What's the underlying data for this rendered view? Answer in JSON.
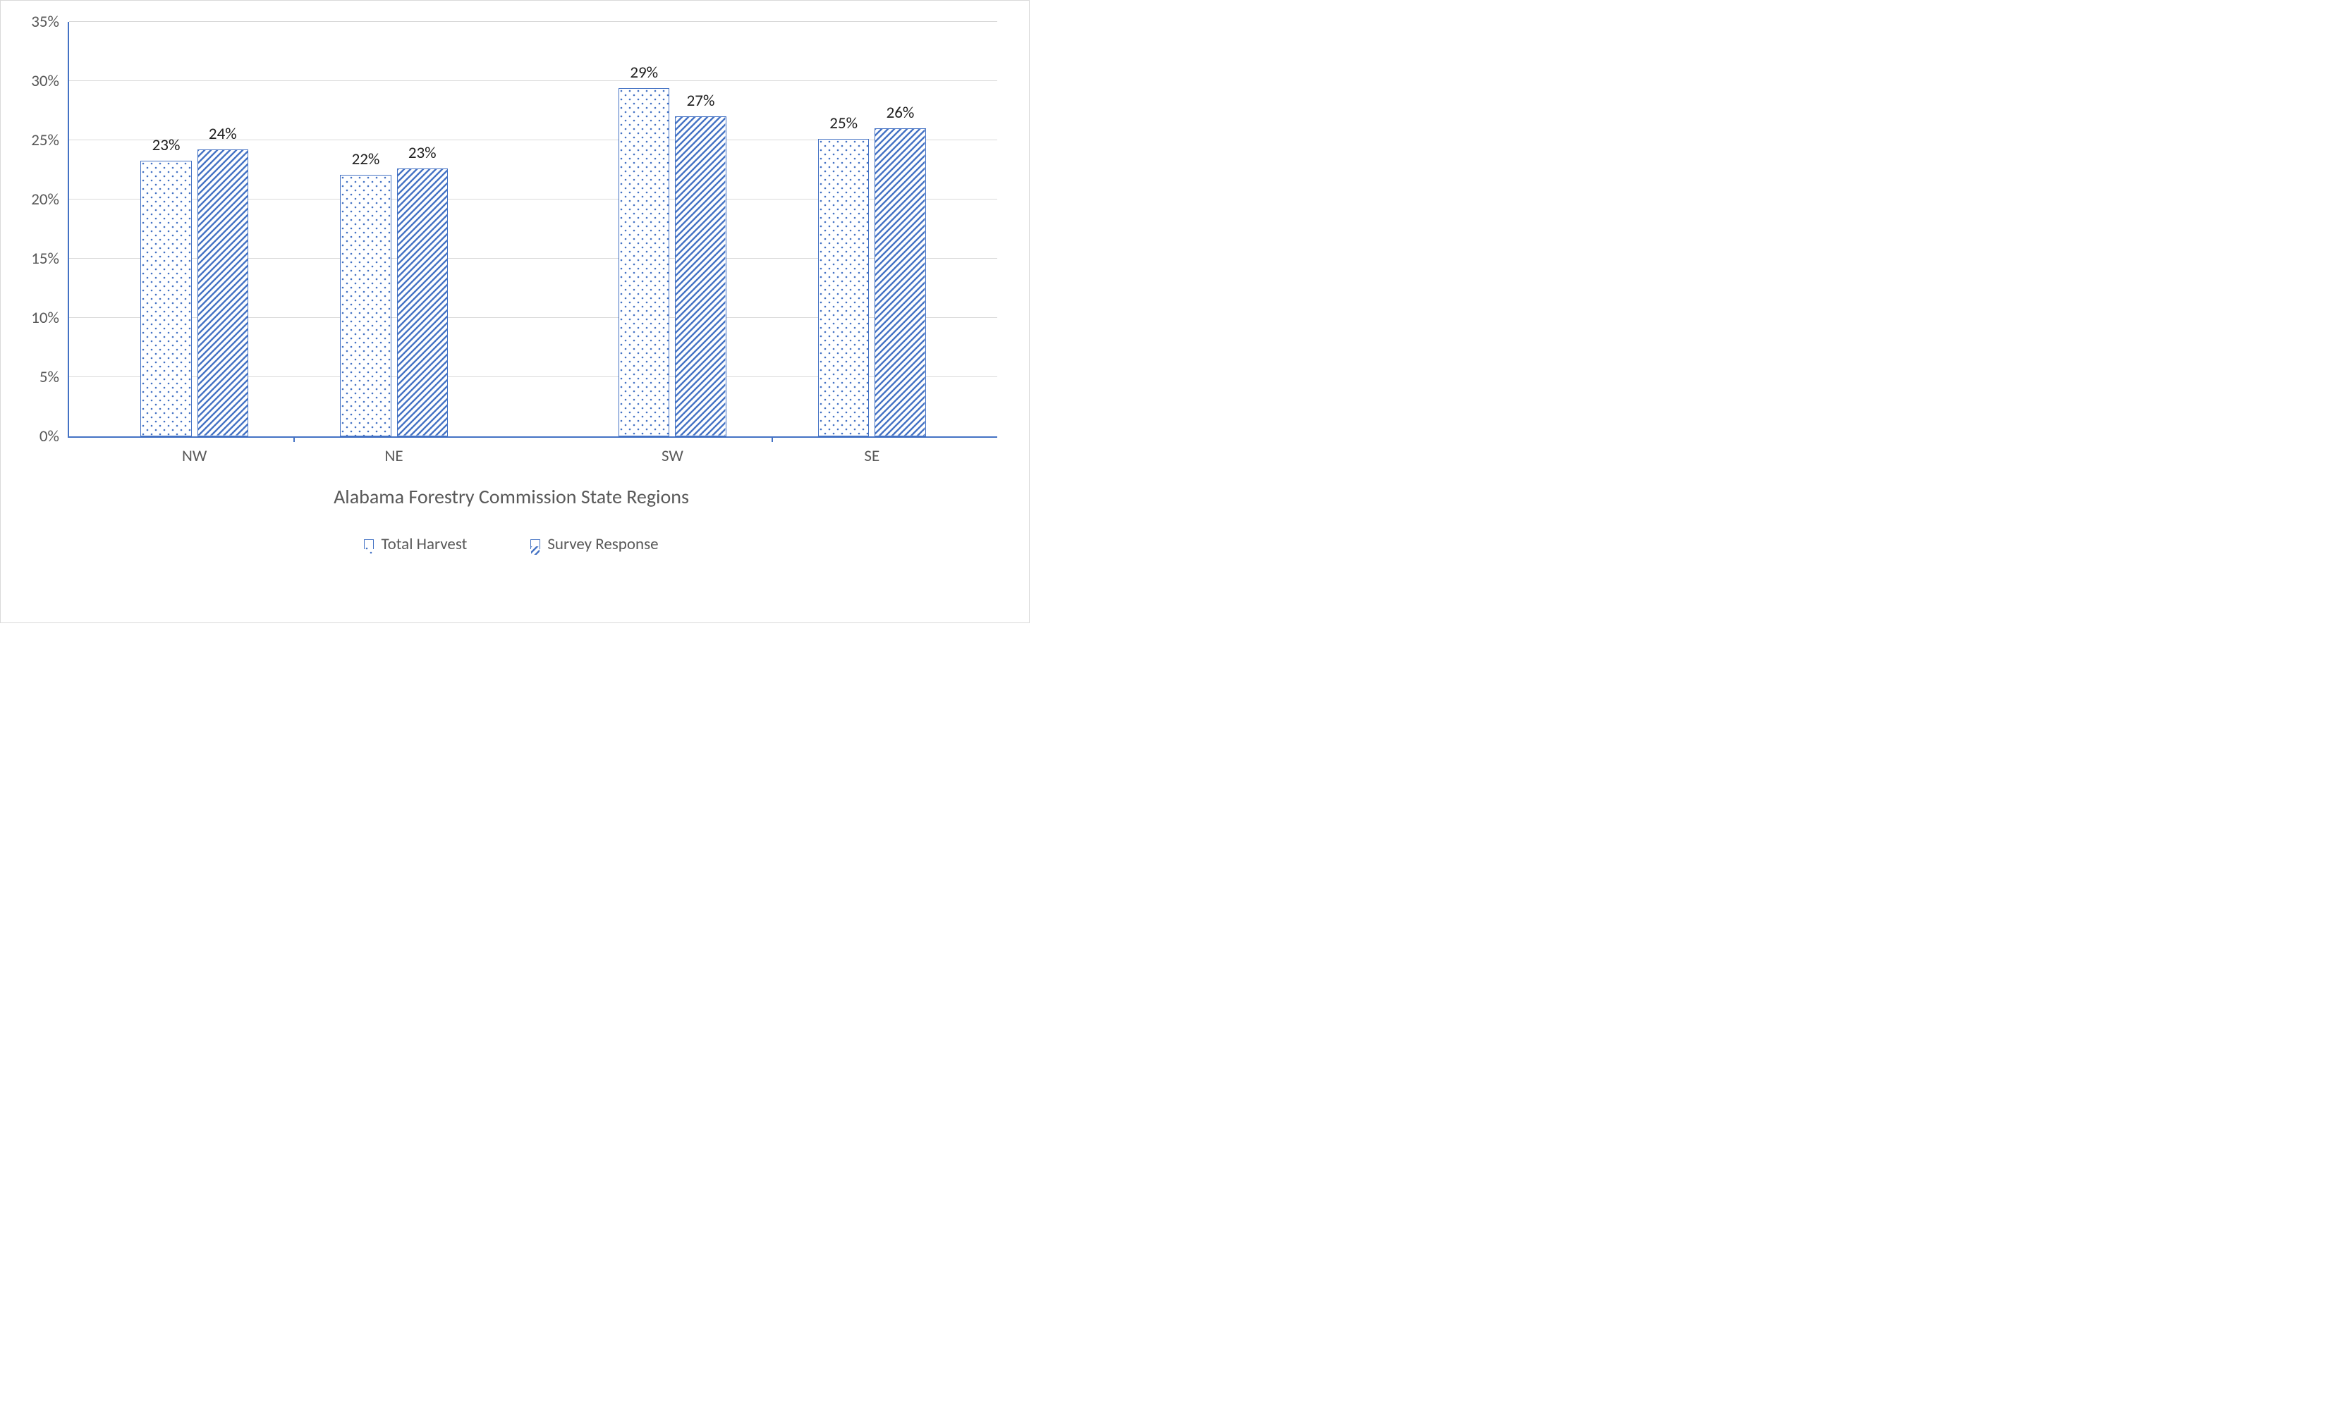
{
  "chart": {
    "type": "bar",
    "x_axis_title": "Alabama Forestry Commission State Regions",
    "categories": [
      "NW",
      "NE",
      "SW",
      "SE"
    ],
    "category_positions_pct": [
      13.5,
      35,
      65,
      86.5
    ],
    "tick_positions_pct": [
      24.25,
      75.75
    ],
    "series": [
      {
        "name": "Total Harvest",
        "legend_label": "Total Harvest",
        "pattern": "dots",
        "values": [
          23.3,
          22.1,
          29.4,
          25.1
        ],
        "labels": [
          "23%",
          "22%",
          "29%",
          "25%"
        ]
      },
      {
        "name": "Survey Response",
        "legend_label": "Survey Response",
        "pattern": "diagonal",
        "values": [
          24.2,
          22.6,
          27.0,
          26.0
        ],
        "labels": [
          "24%",
          "23%",
          "27%",
          "26%"
        ]
      }
    ],
    "ylim": [
      0,
      35
    ],
    "ytick_step": 5,
    "y_tick_labels": [
      "0%",
      "5%",
      "10%",
      "15%",
      "20%",
      "25%",
      "30%",
      "35%"
    ],
    "colors": {
      "border": "#d9d9d9",
      "axis": "#4472c4",
      "grid": "#d9d9d9",
      "bar_border": "#4472c4",
      "bar_fill": "#ffffff",
      "pattern": "#4472c4",
      "text": "#595959",
      "data_label": "#202020",
      "background": "#ffffff"
    },
    "font": {
      "family": "Calibri, Arial, sans-serif",
      "tick_size": 23,
      "axis_title_size": 28,
      "data_label_size": 23
    },
    "bar_width_pct": 5.5,
    "bar_gap_pct": 0.6
  }
}
